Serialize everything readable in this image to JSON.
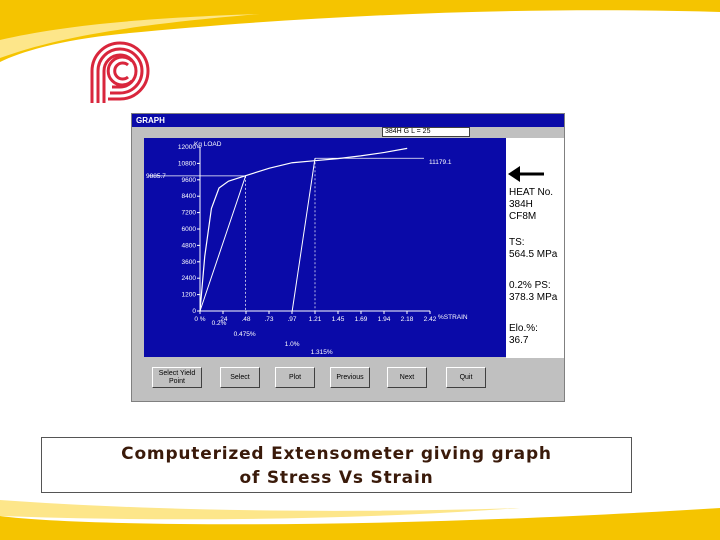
{
  "window": {
    "title": "GRAPH",
    "gauge_length_field": "384H  G L = 25"
  },
  "chart_data": {
    "type": "line",
    "ylabel": "Kg LOAD",
    "xlabel": "%STRAIN",
    "y_ticks": [
      "12000",
      "10800",
      "9600",
      "8400",
      "7200",
      "6000",
      "4800",
      "3600",
      "2400",
      "1200",
      "0"
    ],
    "x_ticks": [
      "0 %",
      ".24",
      ".48",
      ".73",
      ".97",
      "1.21",
      "1.45",
      "1.69",
      "1.94",
      "2.18",
      "2.42"
    ],
    "ylim": [
      0,
      12000
    ],
    "xlim": [
      0,
      2.42
    ],
    "series": [
      {
        "x": [
          0,
          0.05,
          0.12,
          0.2,
          0.3,
          0.48,
          0.73,
          0.97,
          1.21,
          1.45,
          1.69,
          1.94,
          2.18
        ],
        "y": [
          0,
          4000,
          7500,
          9000,
          9500,
          9900,
          10450,
          10850,
          11000,
          11150,
          11350,
          11600,
          11900
        ]
      }
    ],
    "offset_lines": [
      {
        "x": [
          0.0,
          0.48
        ],
        "y": [
          0,
          9885.7
        ]
      },
      {
        "x": [
          0.97,
          1.21
        ],
        "y": [
          0,
          11179.1
        ]
      }
    ],
    "peak_label": "11179.1",
    "yield_label": "9885.7",
    "yield_y": 9885.7,
    "peak_y": 11179.1,
    "annotations": [
      {
        "text": "0.2%",
        "x": 0.2
      },
      {
        "text": "0.475%",
        "x": 0.47
      },
      {
        "text": "1.0%",
        "x": 0.97
      },
      {
        "text": "1.315%",
        "x": 1.28
      }
    ]
  },
  "side": {
    "heat_label": "HEAT No.",
    "heat_grade": "384H",
    "heat_spec": "CF8M",
    "ts_label": "TS:",
    "ts_value": "564.5 MPa",
    "ps_label": "0.2% PS:",
    "ps_value": "378.3 MPa",
    "elo_label": "Elo.%:",
    "elo_value": "36.7"
  },
  "buttons": {
    "select_yield_1": "Select Yield",
    "select_yield_2": "Point",
    "select": "Select",
    "plot": "Plot",
    "previous": "Previous",
    "next": "Next",
    "quit": "Quit"
  },
  "caption": {
    "line1": "Computerized Extensometer giving graph",
    "line2": "of Stress Vs Strain"
  },
  "colors": {
    "plot_bg": "#0a0aa8",
    "accent_yellow": "#f5c400"
  }
}
